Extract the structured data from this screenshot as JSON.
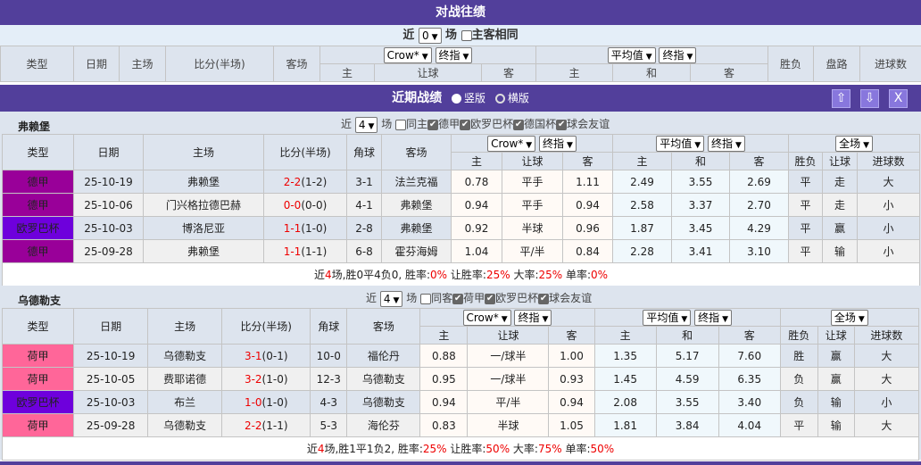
{
  "h2h": {
    "title": "对战往绩",
    "near_label": "近",
    "near_value": "0",
    "near_unit": "场",
    "same_label": "主客相同",
    "headers": {
      "type": "类型",
      "date": "日期",
      "home": "主场",
      "score": "比分(半场)",
      "away": "客场",
      "company": "Crow*",
      "odds_kind": "终指",
      "avg": "平均值",
      "avg_kind": "终指",
      "home_o": "主",
      "handicap": "让球",
      "away_o": "客",
      "h": "主",
      "d": "和",
      "a": "客",
      "result": "胜负",
      "pan": "盘路",
      "goals": "进球数"
    }
  },
  "recent": {
    "title": "近期战绩",
    "opt_vertical": "竖版",
    "opt_horizontal": "横版",
    "btn_up": "⇧",
    "btn_down": "⇩",
    "btn_close": "X"
  },
  "colors": {
    "bar": "#523f9b",
    "德甲": "#990099",
    "欧罗巴杯": "#6e00dc",
    "荷甲": "#ff6699"
  },
  "teams": [
    {
      "name": "弗赖堡",
      "near_value": "4",
      "near_label": "近",
      "near_unit": "场",
      "same_label": "同主",
      "filters": [
        "德甲",
        "欧罗巴杯",
        "德国杯",
        "球会友谊"
      ],
      "headers": {
        "type": "类型",
        "date": "日期",
        "home": "主场",
        "score": "比分(半场)",
        "corner": "角球",
        "away": "客场",
        "company": "Crow*",
        "odds_kind": "终指",
        "avg": "平均值",
        "avg_kind": "终指",
        "scope": "全场",
        "h": "主",
        "hc": "让球",
        "a": "客",
        "ah": "主",
        "ad": "和",
        "aa": "客",
        "res": "胜负",
        "pan": "让球",
        "goals": "进球数"
      },
      "rows": [
        {
          "type": "德甲",
          "date": "25-10-19",
          "home": "弗赖堡",
          "score": "2-2",
          "half": "(1-2)",
          "corner": "3-1",
          "away": "法兰克福",
          "o_h": "0.78",
          "o_hc": "平手",
          "o_a": "1.11",
          "a_h": "2.49",
          "a_d": "3.55",
          "a_a": "2.69",
          "res": "平",
          "pan": "走",
          "goals": "大"
        },
        {
          "type": "德甲",
          "date": "25-10-06",
          "home": "门兴格拉德巴赫",
          "score": "0-0",
          "half": "(0-0)",
          "corner": "4-1",
          "away": "弗赖堡",
          "o_h": "0.94",
          "o_hc": "平手",
          "o_a": "0.94",
          "a_h": "2.58",
          "a_d": "3.37",
          "a_a": "2.70",
          "res": "平",
          "pan": "走",
          "goals": "小"
        },
        {
          "type": "欧罗巴杯",
          "date": "25-10-03",
          "home": "博洛尼亚",
          "score": "1-1",
          "half": "(1-0)",
          "corner": "2-8",
          "away": "弗赖堡",
          "o_h": "0.92",
          "o_hc": "半球",
          "o_a": "0.96",
          "a_h": "1.87",
          "a_d": "3.45",
          "a_a": "4.29",
          "res": "平",
          "pan": "赢",
          "goals": "小"
        },
        {
          "type": "德甲",
          "date": "25-09-28",
          "home": "弗赖堡",
          "score": "1-1",
          "half": "(1-1)",
          "corner": "6-8",
          "away": "霍芬海姆",
          "o_h": "1.04",
          "o_hc": "平/半",
          "o_a": "0.84",
          "a_h": "2.28",
          "a_d": "3.41",
          "a_a": "3.10",
          "res": "平",
          "pan": "输",
          "goals": "小"
        }
      ],
      "summary": {
        "p1": "近",
        "n": "4",
        "p2": "场,胜0平4负0, 胜率:",
        "win": "0%",
        "p3": " 让胜率:",
        "hcwin": "25%",
        "p4": " 大率:",
        "big": "25%",
        "p5": " 单率:",
        "odd": "0%"
      }
    },
    {
      "name": "乌德勒支",
      "near_value": "4",
      "near_label": "近",
      "near_unit": "场",
      "same_label": "同客",
      "filters": [
        "荷甲",
        "欧罗巴杯",
        "球会友谊"
      ],
      "headers": {
        "type": "类型",
        "date": "日期",
        "home": "主场",
        "score": "比分(半场)",
        "corner": "角球",
        "away": "客场",
        "company": "Crow*",
        "odds_kind": "终指",
        "avg": "平均值",
        "avg_kind": "终指",
        "scope": "全场",
        "h": "主",
        "hc": "让球",
        "a": "客",
        "ah": "主",
        "ad": "和",
        "aa": "客",
        "res": "胜负",
        "pan": "让球",
        "goals": "进球数"
      },
      "rows": [
        {
          "type": "荷甲",
          "date": "25-10-19",
          "home": "乌德勒支",
          "score": "3-1",
          "half": "(0-1)",
          "corner": "10-0",
          "away": "福伦丹",
          "o_h": "0.88",
          "o_hc": "一/球半",
          "o_a": "1.00",
          "a_h": "1.35",
          "a_d": "5.17",
          "a_a": "7.60",
          "res": "胜",
          "pan": "赢",
          "goals": "大"
        },
        {
          "type": "荷甲",
          "date": "25-10-05",
          "home": "费耶诺德",
          "score": "3-2",
          "half": "(1-0)",
          "corner": "12-3",
          "away": "乌德勒支",
          "o_h": "0.95",
          "o_hc": "一/球半",
          "o_a": "0.93",
          "a_h": "1.45",
          "a_d": "4.59",
          "a_a": "6.35",
          "res": "负",
          "pan": "赢",
          "goals": "大"
        },
        {
          "type": "欧罗巴杯",
          "date": "25-10-03",
          "home": "布兰",
          "score": "1-0",
          "half": "(1-0)",
          "corner": "4-3",
          "away": "乌德勒支",
          "o_h": "0.94",
          "o_hc": "平/半",
          "o_a": "0.94",
          "a_h": "2.08",
          "a_d": "3.55",
          "a_a": "3.40",
          "res": "负",
          "pan": "输",
          "goals": "小"
        },
        {
          "type": "荷甲",
          "date": "25-09-28",
          "home": "乌德勒支",
          "score": "2-2",
          "half": "(1-1)",
          "corner": "5-3",
          "away": "海伦芬",
          "o_h": "0.83",
          "o_hc": "半球",
          "o_a": "1.05",
          "a_h": "1.81",
          "a_d": "3.84",
          "a_a": "4.04",
          "res": "平",
          "pan": "输",
          "goals": "大"
        }
      ],
      "summary": {
        "p1": "近",
        "n": "4",
        "p2": "场,胜1平1负2, 胜率:",
        "win": "25%",
        "p3": " 让胜率:",
        "hcwin": "50%",
        "p4": " 大率:",
        "big": "75%",
        "p5": " 单率:",
        "odd": "50%"
      }
    }
  ]
}
